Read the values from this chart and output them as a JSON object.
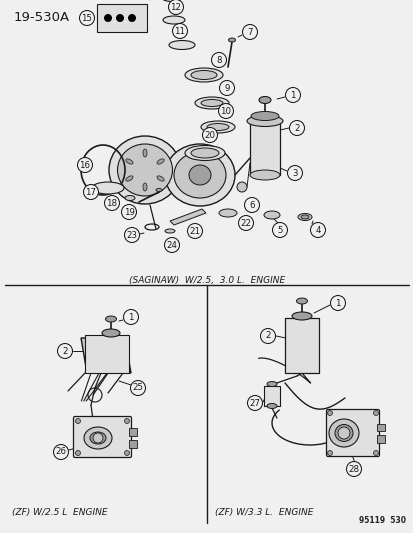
{
  "title": "19-530A",
  "bg_color": "#f0f0f0",
  "fig_width": 4.14,
  "fig_height": 5.33,
  "dpi": 100,
  "top_label": "(SAGINAW)  W/2.5,  3.0 L.  ENGINE",
  "bottom_left_label": "(ZF) W/2.5 L  ENGINE",
  "bottom_right_label": "(ZF) W/3.3 L.  ENGINE",
  "watermark": "95119  530",
  "line_color": "#1a1a1a",
  "gray1": "#c8c8c8",
  "gray2": "#a0a0a0",
  "gray3": "#e0e0e0"
}
